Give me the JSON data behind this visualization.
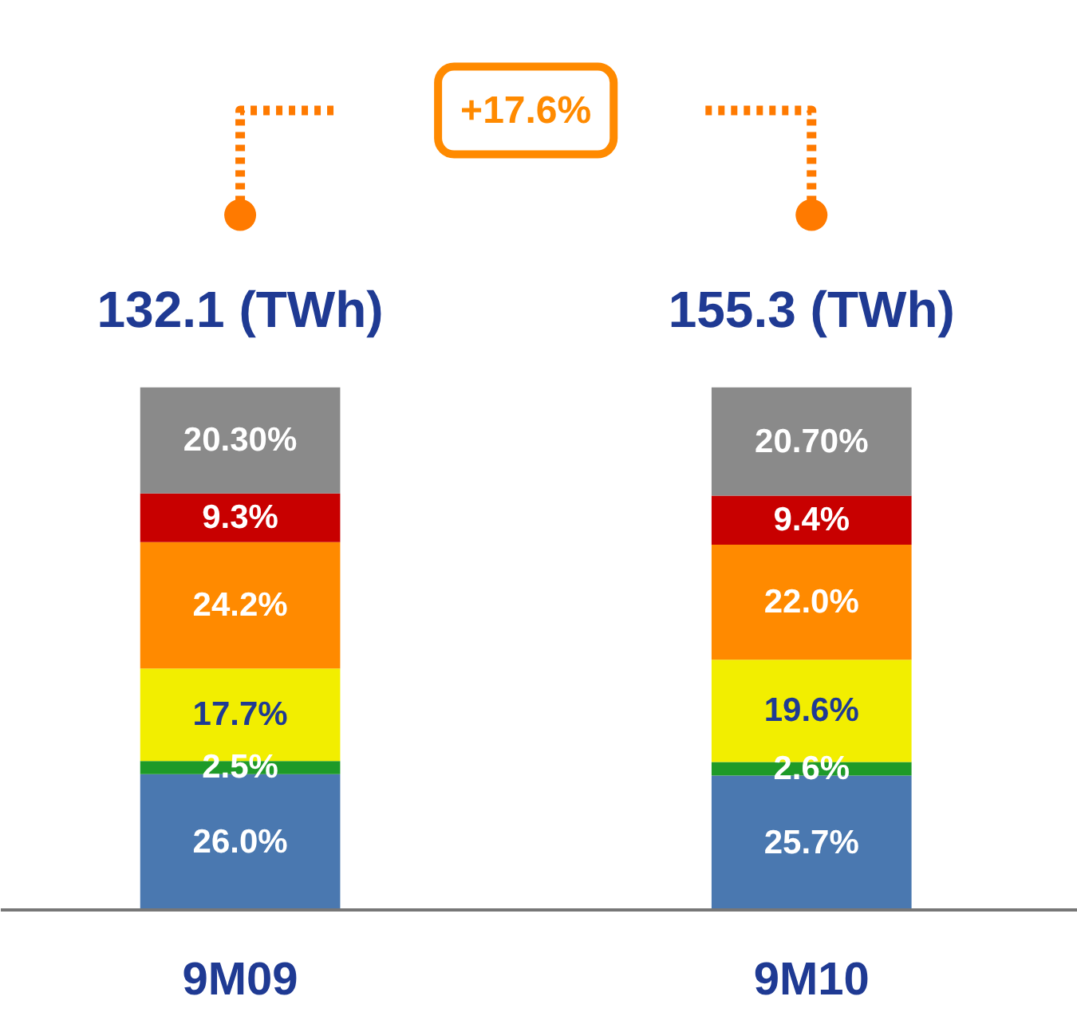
{
  "chart_data": {
    "type": "bar",
    "stacked": true,
    "categories": [
      "9M09",
      "9M10"
    ],
    "series": [
      {
        "color": "#4a78b0",
        "values": [
          26.0,
          25.7
        ],
        "value_labels": [
          "26.0%",
          "25.7%"
        ]
      },
      {
        "color": "#1e9a28",
        "values": [
          2.5,
          2.6
        ],
        "value_labels": [
          "2.5%",
          "2.6%"
        ]
      },
      {
        "color": "#f2ee00",
        "values": [
          17.7,
          19.6
        ],
        "value_labels": [
          "17.7%",
          "19.6%"
        ]
      },
      {
        "color": "#ff8a00",
        "values": [
          24.2,
          22.0
        ],
        "value_labels": [
          "24.2%",
          "22.0%"
        ]
      },
      {
        "color": "#c80000",
        "values": [
          9.3,
          9.4
        ],
        "value_labels": [
          "9.3%",
          "9.4%"
        ]
      },
      {
        "color": "#8a8a8a",
        "values": [
          20.3,
          20.7
        ],
        "value_labels": [
          "20.30%",
          "20.70%"
        ]
      }
    ],
    "annotations": [
      "132.1 (TWh)",
      "155.3 (TWh)",
      "+17.6%"
    ],
    "grid": false
  }
}
